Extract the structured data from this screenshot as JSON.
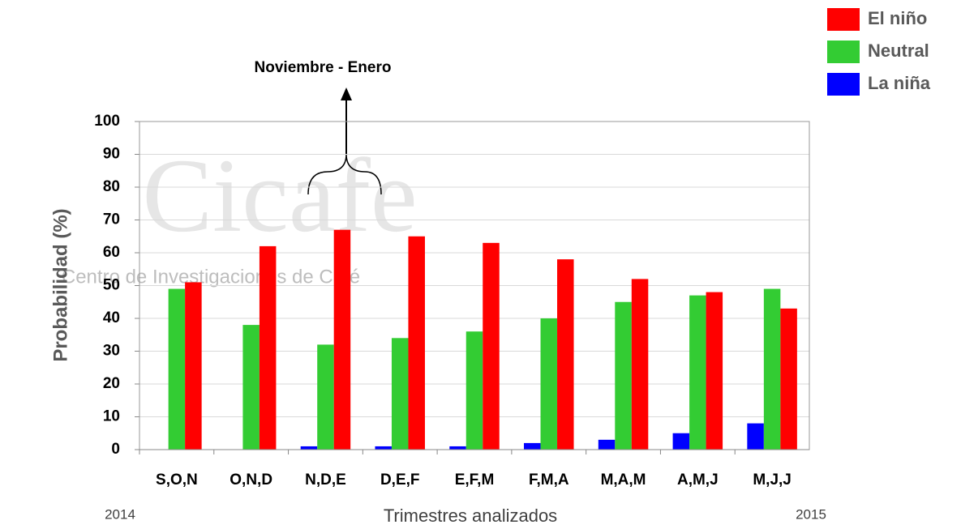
{
  "chart_data": {
    "type": "bar",
    "categories": [
      "S,O,N",
      "O,N,D",
      "N,D,E",
      "D,E,F",
      "E,F,M",
      "F,M,A",
      "M,A,M",
      "A,M,J",
      "M,J,J"
    ],
    "series": [
      {
        "name": "La niña",
        "color": "#0000ff",
        "values": [
          0,
          0,
          1,
          1,
          1,
          2,
          3,
          5,
          8
        ]
      },
      {
        "name": "Neutral",
        "color": "#33cc33",
        "values": [
          49,
          38,
          32,
          34,
          36,
          40,
          45,
          47,
          49
        ]
      },
      {
        "name": "El niño",
        "color": "#ff0000",
        "values": [
          51,
          62,
          67,
          65,
          63,
          58,
          52,
          48,
          43
        ]
      }
    ],
    "ylim": [
      0,
      100
    ],
    "yticks": [
      0,
      10,
      20,
      30,
      40,
      50,
      60,
      70,
      80,
      90,
      100
    ],
    "grid": true,
    "y_label": "Probabilidad (%)",
    "x_label": "Trimestres analizados",
    "x_start_label": "2014",
    "x_end_label": "2015",
    "annotation": "Noviembre - Enero",
    "watermark": {
      "title": "Cicafe",
      "subtitle": "Centro de Investigaciones de Café"
    },
    "legend": "top-right"
  }
}
